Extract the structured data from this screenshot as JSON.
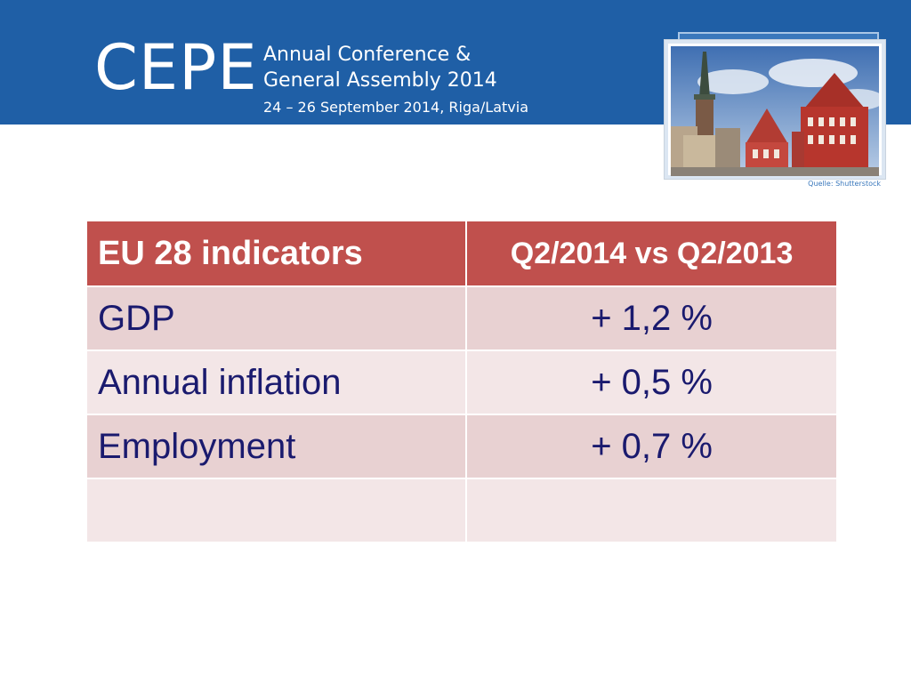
{
  "header": {
    "logo": "CEPE",
    "title_line1": "Annual Conference &",
    "title_line2": "General Assembly 2014",
    "dates": "24 – 26 September 2014, Riga/Latvia",
    "photo_credit": "Quelle: Shutterstock"
  },
  "table": {
    "headers": [
      "EU 28 indicators",
      "Q2/2014 vs Q2/2013"
    ],
    "rows": [
      [
        "GDP",
        "+ 1,2 %"
      ],
      [
        "Annual inflation",
        "+ 0,5 %"
      ],
      [
        "Employment",
        "+ 0,7 %"
      ],
      [
        "",
        ""
      ]
    ]
  },
  "colors": {
    "header_band": "#1f5fa6",
    "table_header": "#c0504d",
    "row_dark": "#e8d1d2",
    "row_light": "#f3e6e7",
    "row_text": "#1a1a6e"
  }
}
